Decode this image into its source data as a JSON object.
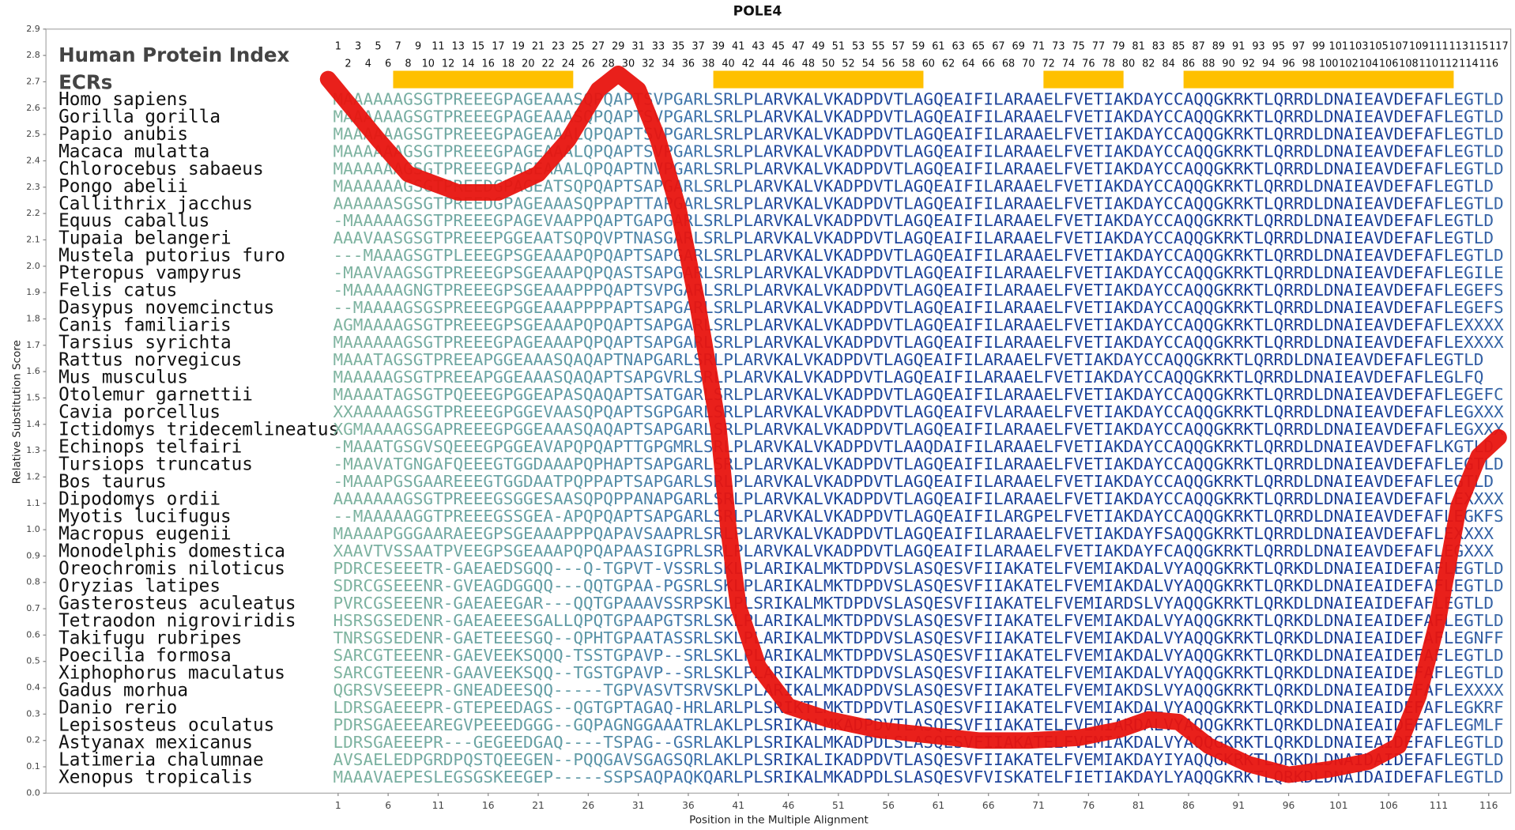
{
  "chart_data": {
    "type": "line",
    "title": "POLE4",
    "x_label": "Position in the Multiple Alignment",
    "y_label": "Relative Substitution Score",
    "index_label": "Human Protein Index",
    "ecr_label": "ECRs",
    "xlim": [
      -28.2,
      118.2
    ],
    "ylim": [
      0,
      2.9
    ],
    "xticks": [
      1,
      6,
      11,
      16,
      21,
      26,
      31,
      36,
      41,
      46,
      51,
      56,
      61,
      66,
      71,
      76,
      81,
      86,
      91,
      96,
      101,
      106,
      111,
      116
    ],
    "yticks": [
      {
        "value": 0,
        "label": "0.0"
      },
      0.1,
      0.2,
      0.3,
      0.4,
      0.5,
      0.6,
      0.7,
      0.8,
      0.9,
      {
        "value": 1,
        "label": "1.0"
      },
      1.1,
      1.2,
      1.3,
      1.4,
      1.5,
      1.6,
      1.7,
      1.8,
      1.9,
      {
        "value": 2,
        "label": "2.0"
      },
      2.1,
      2.2,
      2.3,
      2.4,
      2.5,
      2.6,
      2.7,
      2.8,
      2.9
    ],
    "series": [
      {
        "color": "#e8140f",
        "x": [
          0,
          5,
          8,
          13,
          17,
          21,
          24,
          27,
          29,
          31,
          33,
          35,
          37,
          39,
          40,
          41,
          43,
          46,
          50,
          55,
          60,
          65,
          70,
          75,
          79,
          82,
          85,
          88,
          92,
          96,
          100,
          104,
          107,
          109,
          111,
          113,
          115,
          117
        ],
        "values": [
          2.71,
          2.48,
          2.35,
          2.28,
          2.28,
          2.35,
          2.48,
          2.67,
          2.73,
          2.67,
          2.48,
          2.22,
          1.84,
          1.39,
          1.01,
          0.71,
          0.48,
          0.33,
          0.28,
          0.24,
          0.22,
          0.2,
          0.2,
          0.21,
          0.24,
          0.28,
          0.27,
          0.18,
          0.11,
          0.07,
          0.09,
          0.12,
          0.18,
          0.37,
          0.67,
          1.09,
          1.28,
          1.35
        ]
      }
    ],
    "index_numbers": [
      1,
      2,
      3,
      4,
      5,
      6,
      7,
      8,
      9,
      10,
      11,
      12,
      13,
      14,
      15,
      16,
      17,
      18,
      19,
      20,
      21,
      22,
      23,
      24,
      25,
      26,
      27,
      28,
      29,
      30,
      31,
      32,
      33,
      34,
      35,
      36,
      37,
      38,
      39,
      40,
      41,
      42,
      43,
      44,
      45,
      46,
      47,
      48,
      49,
      50,
      51,
      52,
      53,
      54,
      55,
      56,
      57,
      58,
      59,
      60,
      61,
      62,
      63,
      64,
      65,
      66,
      67,
      68,
      69,
      70,
      71,
      72,
      73,
      74,
      75,
      76,
      77,
      78,
      79,
      80,
      81,
      82,
      83,
      84,
      85,
      86,
      87,
      88,
      89,
      90,
      91,
      92,
      93,
      94,
      95,
      96,
      97,
      98,
      99,
      100,
      101,
      102,
      103,
      104,
      105,
      106,
      107,
      108,
      109,
      110,
      111,
      112,
      113,
      114,
      115,
      116,
      117
    ],
    "ecr_color": "#ffc000",
    "ecrs": [
      [
        7,
        24
      ],
      [
        39,
        59
      ],
      [
        72,
        79
      ],
      [
        86,
        112
      ]
    ],
    "alignment": [
      {
        "species": "Homo sapiens",
        "sequence": "MAAAAAAGSGTPREEEGPAGEAAASQPQAPTSVPGARLSRLPLARVKALVKADPDVTLAGQEAIFILARAAELFVETIAKDAYCCAQQGKRKTLQRRDLDNAIEAVDEFAFLEGTLD"
      },
      {
        "species": "Gorilla gorilla",
        "sequence": "MAAAAAAGSGTPREEEGPAGEAAASQPQAPTSVPGARLSRLPLARVKALVKADPDVTLAGQEAIFILARAAELFVETIAKDAYCCAQQGKRKTLQRRDLDNAIEAVDEFAFLEGTLD"
      },
      {
        "species": "Papio anubis",
        "sequence": "MAAAAAAGSGTPREEEGPAGEAAALQPQAPTSVPGARLSRLPLARVKALVKADPDVTLAGQEAIFILARAAELFVETIAKDAYCCAQQGKRKTLQRRDLDNAIEAVDEFAFLEGTLD"
      },
      {
        "species": "Macaca mulatta",
        "sequence": "MAAAAAAGSGTPREEEGPAGEAAALQPQAPTSVPGARLSRLPLARVKALVKADPDVTLAGQEAIFILARAAELFVETIAKDAYCCAQQGKRKTLQRRDLDNAIEAVDEFAFLEGTLD"
      },
      {
        "species": "Chlorocebus sabaeus",
        "sequence": "MAAAAAAGSGTPREEEGPAGEAAALQPQAPTNVPGARLSRLPLARVKALVKADPDVTLAGQEAIFILARAAELFVETIAKDAYCCAQQGKRKTLQRRDLDNAIEAVDEFAFLEGTLD"
      },
      {
        "species": "Pongo abelii",
        "sequence": "MAAAAAAGSGTPREEDGPAGEATSQPQAPTSAPGARLSRLPLARVKALVKADPDVTLAGQEAIFILARAAELFVETIAKDAYCCAQQGKRKTLQRRDLDNAIEAVDEFAFLEGTLD"
      },
      {
        "species": "Callithrix jacchus",
        "sequence": "AAAAAASGSGTPREEDGPAGEAAASQPPAPTTAPGARLSRLPLARVKALVKADPDVTLAGQEAIFILARAAELFVETIAKDAYCCAQQGKRKTLQRRDLDNAIEAVDEFAFLEGTLD"
      },
      {
        "species": "Equus caballus",
        "sequence": "-MAAAAAGSGTPREEEGPAGEVAAPPQAPTGAPGARLSRLPLARVKALVKADPDVTLAGQEAIFILARAAELFVETIAKDAYCCAQQGKRKTLQRRDLDNAIEAVDEFAFLEGTLD"
      },
      {
        "species": "Tupaia belangeri",
        "sequence": "AAAVAASGSGTPREEEPGGEAATSQPQVPTNASGARLSRLPLARVKALVKADPDVTLAGQEAIFILARAAELFVETIAKDAYCCAQQGKRKTLQRRDLDNAIEAVDEFAFLEGTLD"
      },
      {
        "species": "Mustela putorius furo",
        "sequence": "---MAAAGSGTPLEEEGPSGEAAAPQPQAPTSAPGARLSRLPLARVKALVKADPDVTLAGQEAIFILARAAELFVETIAKDAYCCAQQGKRKTLQRRDLDNAIEAVDEFAFLEGTLD"
      },
      {
        "species": "Pteropus vampyrus",
        "sequence": "-MAAVAAGSGTPREEEGPSGEAAAPQPQASTSAPGARLSRLPLARVKALVKADPDVTLAGQEAIFILARAAELFVETIAKDAYCCAQQGKRKTLQRRDLDNAIEAVDEFAFLEGILE"
      },
      {
        "species": "Felis catus",
        "sequence": "-MAAAAAGNGTPREEEGPSGEAAAPPPQAPTSVPGARLSRLPLARVKALVKADPDVTLAGQEAIFILARAAELFVETIAKDAYCCAQQGKRKTLQRRDLDNAIEAVDEFAFLEGEFS"
      },
      {
        "species": "Dasypus novemcinctus",
        "sequence": "--MAAAAGSGSPREEEGPGGEAAAPPPPAPTSAPGARLSRLPLARVKALVKADPDVTLAGQEAIFILARAAELFVETIAKDAYCCAQQGKRKTLQRRDLDNAIEAVDEFAFLEGEFS"
      },
      {
        "species": "Canis familiaris",
        "sequence": "AGMAAAAGSGTPREEEGPSGEAAAPQPQAPTSAPGARLSRLPLARVKALVKADPDVTLAGQEAIFILARAAELFVETIAKDAYCCAQQGKRKTLQRRDLDNAIEAVDEFAFLEXXXX"
      },
      {
        "species": "Tarsius syrichta",
        "sequence": "MAAAAAAGSGTPREEEGPAGEAAAPQPQAPTSAPGARLSRLPLARVKALVKADPDVTLAGQEAIFILARAAELFVETIAKDAYCCAQQGKRKTLQRRDLDNAIEAVDEFAFLEXXXX"
      },
      {
        "species": "Rattus norvegicus",
        "sequence": "MAAATAGSGTPREEAPGGEAAASQAQAPTNAPGARLSRLPLARVKALVKADPDVTLAGQEAIFILARAAELFVETIAKDAYCCAQQGKRKTLQRRDLDNAIEAVDEFAFLEGTLD"
      },
      {
        "species": "Mus musculus",
        "sequence": "MAAAAAGSGTPREEAPGGEAAASQAQAPTSAPGVRLSRLPLARVKALVKADPDVTLAGQEAIFILARAAELFVETIAKDAYCCAQQGKRKTLQRRDLDNAIEAVDEFAFLEGLFQ"
      },
      {
        "species": "Otolemur garnettii",
        "sequence": "MAAAATAGSGTPQEEEGPGGEAPASQAQAPTSATGARLSRLPLARVKALVKADPDVTLAGQEAIFILARAAELFVETIAKDAYCCAQQGKRKTLQRRDLDNAIEAVDEFAFLEGEFC"
      },
      {
        "species": "Cavia porcellus",
        "sequence": "XXAAAAAGSGTPREEEGPGGEVAASQPQAPTSGPGARLSRLPLARVKALVKADPDVTLAGQEAIFVLARAAELFVETIAKDAYCCAQQGKRKTLQRRDLDNAIEAVDEFAFLEGXXX"
      },
      {
        "species": "Ictidomys tridecemlineatus",
        "sequence": "XGMAAAAGSGAPREEEGPGGEAAASQAQAPTSAPGARLSRLPLARVKALVKADPDVTLAGQEAIFILARAAELFVETIAKDAYCCAQQGKRKTLQRRDLDNAIEAVDEFAFLEGXXX"
      },
      {
        "species": "Echinops telfairi",
        "sequence": "-MAAATGSGVSQEEEGPGGEAVAPQPQAPTTGPGMRLSRLPLARVKALVKADPDVTLAAQDAIFILARAAELFVETIAKDAYCCAQQGKRKTLQRRDLDNAIEAVDEFAFLKGTLD"
      },
      {
        "species": "Tursiops truncatus",
        "sequence": "-MAAVATGNGAFQEEEGTGGDAAAPQPHAPTSAPGARLSRLPLARVKALVKADPDVTLAGQEAIFILARAAELFVETIAKDAYCCAQQGKRKTLQRRDLDNAIEAVDEFAFLEGTLD"
      },
      {
        "species": "Bos taurus",
        "sequence": "-MAAAPGSGAAREEEGTGGDAATPQPPAPTSAPGARLSRLPLARVKALVKADPDVTLAGQEAIFILARAAELFVETIAKDAYCCAQQGKRKTLQRRDLDNAIEAVDEFAFLEGTLD"
      },
      {
        "species": "Dipodomys ordii",
        "sequence": "AAAAAAAGSGTPREEEGSGGESAASQPQPPANAPGARLSRLPLARVKALVKADPDVTLAGQEAIFILARAAELFVETIAKDAYCCAQQGKRKTLQRRDLDNAIEAVDEFAFLEXXXX"
      },
      {
        "species": "Myotis lucifugus",
        "sequence": "--MAAAAAGGTPREEEGSSGEA-APQPQAPTSAPGARLSRLPLARVKALVKADPDVTLAGQEAIFILARGPELFVETIAKDAYCCAQQGKRKTLQRRDLDNAIEAVDEFAFLEGKFS"
      },
      {
        "species": "Macropus eugenii",
        "sequence": "MAAAAPGGGAARAEEGPSGEAAAPPPQAPAVSAAPRLSRLPLARVKALVKADPDVTLAGQEAIFILARAAELFVETIAKDAYFSAQQGKRKTLQRRDLDNAIEAVDEFAFLEXXXX"
      },
      {
        "species": "Monodelphis domestica",
        "sequence": "XAAVTVSSAATPVEEGPSGEAAAPQPQAPAASIGPRLSRLPLARVKALVKADPDVTLAGQEAIFILARAAELFVETIAKDAYFCAQQGKRKTLQRRDLDNAIEAVDEFAFLEGXXX"
      },
      {
        "species": "Oreochromis niloticus",
        "sequence": "PDRCESEEETR-GAEAEDSGQQ---Q-TGPVT-VSSRLSKLPLARIKALMKTDPDVSLASQESVFIIAKATELFVEMIAKDALVYAQQGKRKTLQRKDLDNAIEAIDEFAFLEGTLD"
      },
      {
        "species": "Oryzias latipes",
        "sequence": "SDRCGSEEENR-GVEAGDGGQQ---QQTGPAA-PGSRLSKLPLARIKALMKTDPDVSLASQESVFIIAKATELFVEMIAKDALVYAQQGKRKTLQRKDLDNAIEAIDEFAFLEGTLD"
      },
      {
        "species": "Gasterosteus aculeatus",
        "sequence": "PVRCGSEEENR-GAEAEEGAR---QQTGPAAAVSSRPSKLPLSRIKALMKTDPDVSLASQESVFIIAKATELFVEMIARDSLVYAQQGKRKTLQRKDLDNAIEAIDEFAFLEGTLD"
      },
      {
        "species": "Tetraodon nigroviridis",
        "sequence": "HSRSGSEDENR-GAEAEEESGALLQPQTGPAAPGTSRLSKLPLARIKALMKTDPDVSLASQESVFIIAKATELFVEMIAKDALVYAQQGKRKTLQRKDLDNAIEAIDEFAFLEGTLD"
      },
      {
        "species": "Takifugu rubripes",
        "sequence": "TNRSGSEDENR-GAETEEESGQ--QPHTGPAATASSRLSKLPLARIKALMKTDPDVSLASQESVFIIAKATELFVEMIAKDALVYAQQGKRKTLQRKDLDNAIEAIDEFAFLEGNFF"
      },
      {
        "species": "Poecilia formosa",
        "sequence": "SARCGTEEENR-GAEVEEKSQQQ-TSSTGPAVP--SRLSKLPLARIKALMKTDPDVSLASQESVFIIAKATELFVEMIAKDALVYAQQGKRKTLQRKDLDNAIEAIDEFAFLEGTLD"
      },
      {
        "species": "Xiphophorus maculatus",
        "sequence": "SARCGTEEENR-GAAVEEKSQQ--TGSTGPAVP--SRLSKLPLARIKALMKTDPDVSLASQESVFIIAKATELFVEMIAKDALVYAQQGKRKTLQRKDLDNAIEAIDEFAFLEGTLD"
      },
      {
        "species": "Gadus morhua",
        "sequence": "QGRSVSEEEPR-GNEADEESQQ-----TGPVASVTSRVSKLPLARIKALMKADPDVSLASQESVFIIAKATELFVEMIAKDSLVYAQQGKRKTLQRKDLDNAIEAIDEFAFLEXXXX"
      },
      {
        "species": "Danio rerio",
        "sequence": "LDRSGAEEEPR-GTEPEEDAGS--QGTGPTAGAQ-HRLARLPLSRIKTLMKTDPDVTLASQESVFIIAKATELFVEMIAKDALVYAQQGKRKTLQRKDLDNAIEAIDEFAFLEGKRF"
      },
      {
        "species": "Lepisosteus oculatus",
        "sequence": "PDRSGAEEEAREGVPEEEDGGG--GQPAGNGGAAATRLAKLPLSRIKALMKADPDVTLASQESVFIIAKATELFVEMIARDALVYAQQGKRKTLQRKDLDNAIEAIDEFAFLEGMLF"
      },
      {
        "species": "Astyanax mexicanus",
        "sequence": "LDRSGAEEEPR---GEGEEDGAQ----TSPAG--GSRLAKLPLSRIKALMKADPDLSLASQESVFIIAKATELFVEMIAKDALVYAQQGKRKTLQRKDLDNAIEAIDEFAFLEGTLD"
      },
      {
        "species": "Latimeria chalumnae",
        "sequence": "AVSAELEDPGRDPQSTQEEGEN--PQQGAVSGAGSQRLAKLPLSRIKALIKADPDVTLASQESVFIIAKATELFVEMIAKDAYIYAQQGKRKTLQRKDLDNAIDAIDEFAFLEGTLD"
      },
      {
        "species": "Xenopus tropicalis",
        "sequence": "MAAAVAEPESLEGSGSKEEGEP-----SSPSAQPAQKQARLPLSRIKALMKADPDLSLASQESVFVISKATELFIETIAKDAYLYAQQGKRKTLQRKDLDNAIDAIDEFAFLEGTLD"
      }
    ]
  }
}
